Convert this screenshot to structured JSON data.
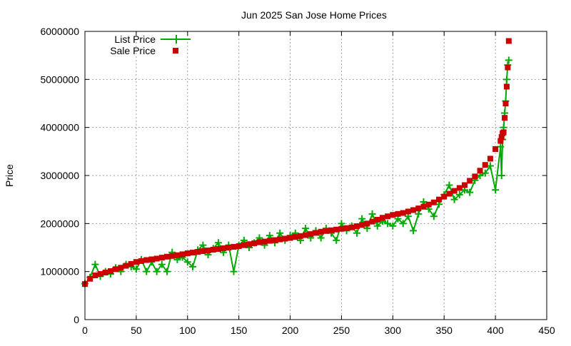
{
  "chart_data": {
    "type": "line",
    "title": "Jun 2025 San Jose Home Prices",
    "xlabel": "",
    "ylabel": "Price",
    "xlim": [
      0,
      450
    ],
    "ylim": [
      0,
      6000000
    ],
    "xticks": [
      0,
      50,
      100,
      150,
      200,
      250,
      300,
      350,
      400,
      450
    ],
    "yticks": [
      0,
      1000000,
      2000000,
      3000000,
      4000000,
      5000000,
      6000000
    ],
    "grid": true,
    "legend_position": "top-left",
    "x": [
      0,
      5,
      10,
      15,
      20,
      25,
      30,
      35,
      40,
      45,
      50,
      55,
      60,
      65,
      70,
      75,
      80,
      85,
      90,
      95,
      100,
      105,
      110,
      115,
      120,
      125,
      130,
      135,
      140,
      145,
      150,
      155,
      160,
      165,
      170,
      175,
      180,
      185,
      190,
      195,
      200,
      205,
      210,
      215,
      220,
      225,
      230,
      235,
      240,
      245,
      250,
      255,
      260,
      265,
      270,
      275,
      280,
      285,
      290,
      295,
      300,
      305,
      310,
      315,
      320,
      325,
      330,
      335,
      340,
      345,
      350,
      355,
      360,
      365,
      370,
      375,
      380,
      385,
      390,
      395,
      400,
      405,
      406,
      407,
      408,
      409,
      410,
      411,
      412,
      413
    ],
    "series": [
      {
        "name": "List Price",
        "color": "#00aa00",
        "style": "linespoints-plus",
        "values": [
          750000,
          880000,
          1150000,
          900000,
          1000000,
          950000,
          1080000,
          1000000,
          1150000,
          1100000,
          1050000,
          1250000,
          1000000,
          1200000,
          1000000,
          1150000,
          1000000,
          1400000,
          1250000,
          1300000,
          1200000,
          1100000,
          1450000,
          1550000,
          1350000,
          1480000,
          1600000,
          1400000,
          1550000,
          1000000,
          1550000,
          1650000,
          1500000,
          1600000,
          1700000,
          1550000,
          1750000,
          1600000,
          1800000,
          1650000,
          1750000,
          1800000,
          1650000,
          1900000,
          1700000,
          1850000,
          1700000,
          1900000,
          1800000,
          1650000,
          2000000,
          1850000,
          1950000,
          1800000,
          2100000,
          1900000,
          2200000,
          1950000,
          2050000,
          2000000,
          1950000,
          2100000,
          2000000,
          2150000,
          1850000,
          2200000,
          2450000,
          2300000,
          2150000,
          2400000,
          2600000,
          2800000,
          2500000,
          2600000,
          2700000,
          2650000,
          2900000,
          3000000,
          3050000,
          3200000,
          2700000,
          3600000,
          3000000,
          3750000,
          4000000,
          4300000,
          4550000,
          5000000,
          5300000,
          5400000
        ]
      },
      {
        "name": "Sale Price",
        "color": "#cc0000",
        "style": "points-square",
        "values": [
          740000,
          850000,
          920000,
          950000,
          980000,
          1010000,
          1050000,
          1080000,
          1120000,
          1160000,
          1200000,
          1220000,
          1240000,
          1255000,
          1270000,
          1290000,
          1310000,
          1325000,
          1340000,
          1360000,
          1380000,
          1395000,
          1410000,
          1425000,
          1440000,
          1455000,
          1470000,
          1485000,
          1500000,
          1515000,
          1530000,
          1550000,
          1570000,
          1590000,
          1610000,
          1625000,
          1640000,
          1655000,
          1670000,
          1685000,
          1700000,
          1720000,
          1740000,
          1760000,
          1780000,
          1805000,
          1830000,
          1845000,
          1860000,
          1875000,
          1890000,
          1905000,
          1920000,
          1945000,
          1970000,
          2000000,
          2040000,
          2080000,
          2120000,
          2150000,
          2180000,
          2200000,
          2220000,
          2250000,
          2280000,
          2315000,
          2350000,
          2395000,
          2440000,
          2500000,
          2560000,
          2620000,
          2680000,
          2740000,
          2800000,
          2890000,
          2980000,
          3100000,
          3220000,
          3350000,
          3550000,
          3720000,
          3800000,
          3880000,
          3900000,
          4200000,
          4500000,
          4850000,
          5250000,
          5800000
        ]
      }
    ]
  }
}
